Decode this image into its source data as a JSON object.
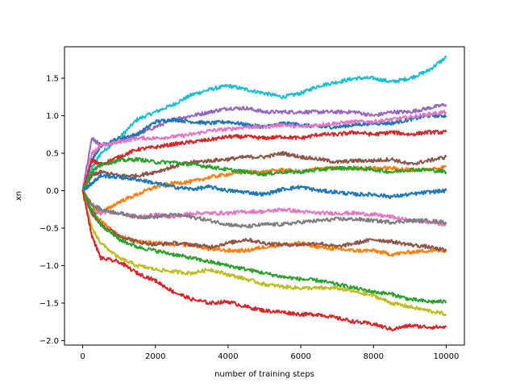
{
  "chart_data": {
    "type": "line",
    "title": "",
    "xlabel": "number of training steps",
    "ylabel": "xn",
    "xlim": [
      -500,
      10500
    ],
    "ylim": [
      -2.06,
      1.92
    ],
    "xticks": [
      0,
      2000,
      4000,
      6000,
      8000,
      10000
    ],
    "xtick_labels": [
      "0",
      "2000",
      "4000",
      "6000",
      "8000",
      "10000"
    ],
    "yticks": [
      -2.0,
      -1.5,
      -1.0,
      -0.5,
      0.0,
      0.5,
      1.0,
      1.5
    ],
    "ytick_labels": [
      "−2.0",
      "−1.5",
      "−1.0",
      "−0.5",
      "0.0",
      "0.5",
      "1.0",
      "1.5"
    ],
    "grid": false,
    "x": [
      0,
      250,
      500,
      1000,
      1500,
      2000,
      2500,
      3000,
      3500,
      4000,
      4500,
      5000,
      5500,
      6000,
      6500,
      7000,
      7500,
      8000,
      8500,
      9000,
      9500,
      10000
    ],
    "series": [
      {
        "color": "#17becf",
        "values": [
          0,
          0.3,
          0.5,
          0.7,
          0.95,
          1.05,
          1.15,
          1.28,
          1.35,
          1.4,
          1.35,
          1.3,
          1.25,
          1.3,
          1.4,
          1.45,
          1.5,
          1.5,
          1.45,
          1.5,
          1.6,
          1.78
        ]
      },
      {
        "color": "#9467bd",
        "values": [
          0,
          0.7,
          0.6,
          0.65,
          0.75,
          0.85,
          0.95,
          1.0,
          1.05,
          1.1,
          1.1,
          1.05,
          1.05,
          1.05,
          1.05,
          1.05,
          1.05,
          1.0,
          1.05,
          1.05,
          1.1,
          1.15
        ]
      },
      {
        "color": "#1f77b4",
        "values": [
          0,
          0.4,
          0.6,
          0.7,
          0.75,
          0.92,
          0.95,
          0.92,
          0.9,
          0.92,
          0.88,
          0.85,
          0.9,
          0.88,
          0.85,
          0.85,
          0.88,
          0.9,
          0.9,
          0.95,
          1.0,
          1.0
        ]
      },
      {
        "color": "#e377c2",
        "values": [
          0,
          0.5,
          0.6,
          0.65,
          0.7,
          0.7,
          0.72,
          0.75,
          0.8,
          0.82,
          0.85,
          0.85,
          0.88,
          0.85,
          0.88,
          0.9,
          0.92,
          0.92,
          0.95,
          0.98,
          1.02,
          1.05
        ]
      },
      {
        "color": "#d62728",
        "values": [
          0,
          0.4,
          0.35,
          0.45,
          0.55,
          0.58,
          0.62,
          0.65,
          0.68,
          0.72,
          0.72,
          0.7,
          0.72,
          0.7,
          0.75,
          0.75,
          0.78,
          0.75,
          0.78,
          0.75,
          0.78,
          0.78
        ]
      },
      {
        "color": "#8c564b",
        "values": [
          0,
          0.2,
          0.25,
          0.2,
          0.2,
          0.25,
          0.32,
          0.38,
          0.4,
          0.42,
          0.45,
          0.45,
          0.5,
          0.45,
          0.42,
          0.38,
          0.4,
          0.4,
          0.42,
          0.35,
          0.4,
          0.45
        ]
      },
      {
        "color": "#ff7f0e",
        "values": [
          0,
          -0.2,
          -0.3,
          -0.15,
          -0.05,
          0.05,
          0.1,
          0.12,
          0.18,
          0.22,
          0.25,
          0.25,
          0.28,
          0.25,
          0.3,
          0.3,
          0.3,
          0.3,
          0.3,
          0.28,
          0.28,
          0.32
        ]
      },
      {
        "color": "#2ca02c",
        "values": [
          0,
          0.25,
          0.35,
          0.4,
          0.42,
          0.38,
          0.38,
          0.35,
          0.32,
          0.28,
          0.25,
          0.22,
          0.25,
          0.25,
          0.28,
          0.3,
          0.3,
          0.28,
          0.25,
          0.28,
          0.28,
          0.25
        ]
      },
      {
        "color": "#1f77b4",
        "values": [
          0,
          0.1,
          0.2,
          0.18,
          0.15,
          0.1,
          0.05,
          0.02,
          0.05,
          0.0,
          -0.02,
          -0.05,
          0.02,
          0.05,
          0.0,
          -0.02,
          -0.05,
          -0.05,
          -0.08,
          -0.05,
          -0.02,
          0.0
        ]
      },
      {
        "color": "#e377c2",
        "values": [
          0,
          -0.3,
          -0.28,
          -0.3,
          -0.35,
          -0.32,
          -0.35,
          -0.3,
          -0.3,
          -0.3,
          -0.28,
          -0.28,
          -0.25,
          -0.28,
          -0.3,
          -0.3,
          -0.3,
          -0.32,
          -0.35,
          -0.4,
          -0.42,
          -0.45
        ]
      },
      {
        "color": "#7f7f7f",
        "values": [
          0,
          -0.18,
          -0.25,
          -0.3,
          -0.35,
          -0.35,
          -0.32,
          -0.35,
          -0.4,
          -0.45,
          -0.48,
          -0.45,
          -0.45,
          -0.42,
          -0.4,
          -0.38,
          -0.38,
          -0.4,
          -0.42,
          -0.4,
          -0.4,
          -0.42
        ]
      },
      {
        "color": "#ff7f0e",
        "values": [
          0,
          -0.3,
          -0.4,
          -0.6,
          -0.68,
          -0.7,
          -0.72,
          -0.72,
          -0.78,
          -0.8,
          -0.8,
          -0.75,
          -0.72,
          -0.7,
          -0.75,
          -0.78,
          -0.8,
          -0.8,
          -0.85,
          -0.82,
          -0.8,
          -0.8
        ]
      },
      {
        "color": "#8c564b",
        "values": [
          0,
          -0.3,
          -0.45,
          -0.6,
          -0.68,
          -0.72,
          -0.7,
          -0.72,
          -0.75,
          -0.7,
          -0.65,
          -0.7,
          -0.72,
          -0.72,
          -0.7,
          -0.75,
          -0.7,
          -0.65,
          -0.68,
          -0.72,
          -0.75,
          -0.8
        ]
      },
      {
        "color": "#2ca02c",
        "values": [
          0,
          -0.25,
          -0.45,
          -0.65,
          -0.75,
          -0.8,
          -0.85,
          -0.9,
          -0.95,
          -1.0,
          -1.05,
          -1.1,
          -1.15,
          -1.18,
          -1.2,
          -1.25,
          -1.3,
          -1.35,
          -1.38,
          -1.45,
          -1.48,
          -1.48
        ]
      },
      {
        "color": "#bcbd22",
        "values": [
          0,
          -0.5,
          -0.7,
          -0.9,
          -1.0,
          -1.05,
          -1.08,
          -1.1,
          -1.05,
          -1.12,
          -1.18,
          -1.25,
          -1.28,
          -1.3,
          -1.3,
          -1.3,
          -1.35,
          -1.4,
          -1.5,
          -1.55,
          -1.6,
          -1.65
        ]
      },
      {
        "color": "#d62728",
        "values": [
          0,
          -0.6,
          -0.9,
          -0.95,
          -1.1,
          -1.2,
          -1.35,
          -1.45,
          -1.5,
          -1.48,
          -1.55,
          -1.6,
          -1.62,
          -1.65,
          -1.65,
          -1.7,
          -1.75,
          -1.78,
          -1.85,
          -1.8,
          -1.82,
          -1.82
        ]
      }
    ]
  }
}
